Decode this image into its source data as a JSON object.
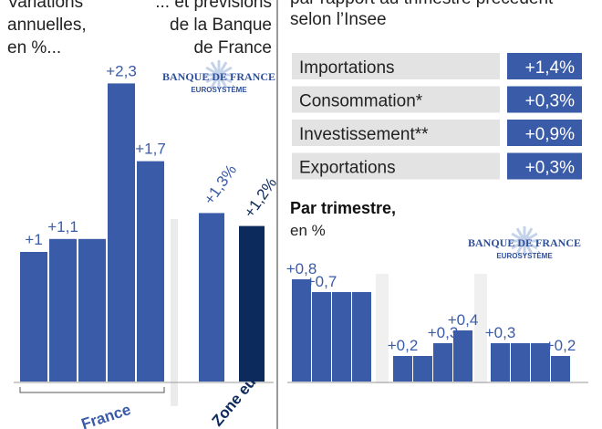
{
  "logo": {
    "name": "BANQUE DE FRANCE",
    "sub": "EUROSYSTÈME"
  },
  "chart_data": [
    {
      "type": "bar",
      "subtitle": [
        "Variations",
        "annuelles,",
        "en %..."
      ],
      "note": [
        "... et prévisions",
        "de la Banque",
        "de France"
      ],
      "ylim": [
        0,
        2.5
      ],
      "groups": [
        {
          "name": "France",
          "color": "#3a5ba8",
          "values": [
            1,
            1.1,
            1.1,
            2.3,
            1.7
          ],
          "value_labels": [
            "+1",
            "+1,1",
            null,
            "+2,3",
            "+1,7"
          ]
        },
        {
          "name": "Zone euro",
          "colors": [
            "#3a5ba8",
            "#0d2a5c"
          ],
          "values": [
            1.3,
            1.2
          ],
          "value_labels": [
            "+1,3%",
            "+1,2%"
          ]
        }
      ]
    },
    {
      "type": "label-bars",
      "subtitle": [
        "par rapport au trimestre précédent",
        "selon l’Insee"
      ],
      "color": "#3a5ba8",
      "categories": [
        "Importations",
        "Consommation*",
        "Investissement**",
        "Exportations"
      ],
      "values": [
        1.4,
        0.3,
        0.9,
        0.3
      ],
      "value_labels": [
        "+1,4%",
        "+0,3%",
        "+0,9%",
        "+0,3%"
      ]
    },
    {
      "type": "grouped-bar",
      "title": "Par trimestre,",
      "subtitle": "en %",
      "color": "#3a5ba8",
      "ylim": [
        0,
        1
      ],
      "groups": [
        {
          "values": [
            0.8,
            0.7,
            0.7,
            0.7
          ],
          "value_labels": [
            "+0,8",
            "+0,7",
            null,
            null
          ]
        },
        {
          "values": [
            0.2,
            0.2,
            0.3,
            0.4
          ],
          "value_labels": [
            "+0,2",
            null,
            "+0,3",
            "+0,4"
          ]
        },
        {
          "values": [
            0.3,
            0.3,
            0.3,
            0.2
          ],
          "value_labels": [
            "+0,3",
            null,
            null,
            "+0,2"
          ]
        }
      ]
    }
  ]
}
